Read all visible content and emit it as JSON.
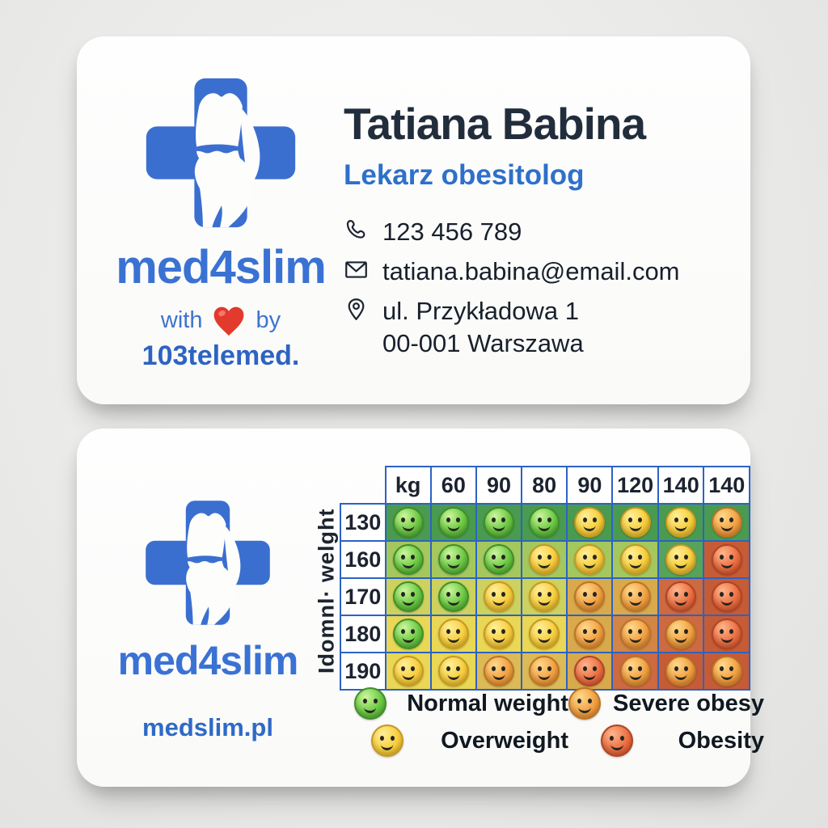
{
  "brand": {
    "name": "med4slim",
    "tagline_prefix": "with",
    "tagline_suffix": "by",
    "tagline_brand": "103telemed.",
    "website": "medslim.pl",
    "blue": "#3a72d4",
    "heart_red": "#e23a2c"
  },
  "person": {
    "name": "Tatiana Babina",
    "title": "Lekarz obesitolog",
    "phone": "123 456 789",
    "email": "tatiana.babina@email.com",
    "address_line1": "ul. Przykładowa 1",
    "address_line2": "00-001 Warszawa"
  },
  "bmi_table": {
    "axis_label": "Idomnl· welght",
    "border_color": "#2d62c3",
    "col_headers": [
      "kg",
      "60",
      "90",
      "80",
      "90",
      "120",
      "140",
      "140"
    ],
    "row_headers": [
      "130",
      "160",
      "170",
      "180",
      "190"
    ],
    "palette": {
      "g1": "#4a9b50",
      "g2": "#a4c85e",
      "g3": "#57a35c",
      "y1": "#cdd15d",
      "y2": "#e9d755",
      "t1": "#dcba55",
      "o1": "#d9aa4c",
      "o2": "#d28544",
      "r1": "#cd6a3f",
      "r2": "#c65c36"
    },
    "rows": [
      [
        "g1|green",
        "g1|green",
        "g1|green",
        "g1|green",
        "g1|yellow",
        "g1|yellow",
        "g1|yellow",
        "g1|orange"
      ],
      [
        "g2|green",
        "g2|green",
        "g2|green",
        "g2|yellow",
        "g2|yellow",
        "g2|yellow",
        "g3|yellow",
        "r2|red"
      ],
      [
        "y1|green",
        "y1|green",
        "y1|yellow",
        "y1|yellow",
        "o1|orange",
        "o1|orange",
        "r1|red",
        "r2|red"
      ],
      [
        "y2|green",
        "y2|yellow",
        "y2|yellow",
        "y2|yellow",
        "o1|orange",
        "o2|orange",
        "r1|orange",
        "r2|red"
      ],
      [
        "y2|yellow",
        "y2|yellow",
        "t1|orange",
        "t1|orange",
        "o1|red",
        "r1|orange",
        "r2|orange",
        "r2|orange"
      ]
    ]
  },
  "legend": {
    "items": [
      {
        "face": "green",
        "label": "Normal weight"
      },
      {
        "face": "yellow",
        "label": "Overweight"
      },
      {
        "face": "orange",
        "label": "Severe obesy"
      },
      {
        "face": "red",
        "label": "Obesity"
      }
    ]
  }
}
